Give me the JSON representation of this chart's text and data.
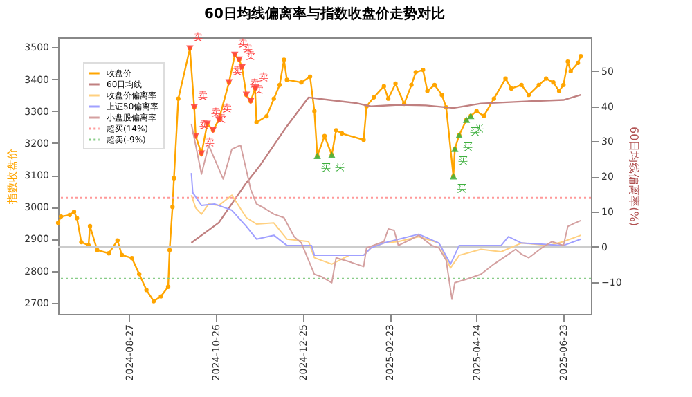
{
  "chart_data": {
    "type": "line",
    "title": "60日均线偏离率与指数收盘价走势对比",
    "ylabel": "指数收盘价",
    "y2label": "60日均线偏离率(%)",
    "xlim": [
      "2024-07-09",
      "2025-07-12"
    ],
    "xticks": [
      "2024-08-27",
      "2024-10-26",
      "2024-12-25",
      "2025-02-23",
      "2025-04-24",
      "2025-06-23"
    ],
    "ylim": [
      2665,
      3531
    ],
    "yticks": [
      2700,
      2800,
      2900,
      3000,
      3100,
      3200,
      3300,
      3400,
      3500
    ],
    "y2lim": [
      -19.1,
      59.6
    ],
    "y2ticks": [
      -10,
      0,
      10,
      20,
      30,
      40,
      50
    ],
    "legend": "top left",
    "series": [
      {
        "name": "收盘价",
        "color": "#ffa500",
        "marker": "circle",
        "x": [
          "2024-07-09",
          "2024-07-11",
          "2024-07-17",
          "2024-07-20",
          "2024-07-22",
          "2024-07-25",
          "2024-07-30",
          "2024-07-31",
          "2024-08-05",
          "2024-08-13",
          "2024-08-19",
          "2024-08-22",
          "2024-08-29",
          "2024-09-03",
          "2024-09-08",
          "2024-09-13",
          "2024-09-18",
          "2024-09-23",
          "2024-09-24",
          "2024-09-26",
          "2024-09-27",
          "2024-09-30",
          "2024-10-08",
          "2024-10-11",
          "2024-10-12",
          "2024-10-16",
          "2024-10-20",
          "2024-10-24",
          "2024-10-28",
          "2024-11-04",
          "2024-11-08",
          "2024-11-11",
          "2024-11-13",
          "2024-11-16",
          "2024-11-19",
          "2024-11-22",
          "2024-11-23",
          "2024-11-30",
          "2024-12-05",
          "2024-12-09",
          "2024-12-12",
          "2024-12-14",
          "2024-12-24",
          "2024-12-30",
          "2025-01-02",
          "2025-01-04",
          "2025-01-09",
          "2025-01-14",
          "2025-01-17",
          "2025-01-21",
          "2025-02-05",
          "2025-02-07",
          "2025-02-12",
          "2025-02-19",
          "2025-02-22",
          "2025-02-27",
          "2025-03-05",
          "2025-03-10",
          "2025-03-13",
          "2025-03-18",
          "2025-03-21",
          "2025-03-26",
          "2025-03-31",
          "2025-04-03",
          "2025-04-08",
          "2025-04-09",
          "2025-04-12",
          "2025-04-17",
          "2025-04-20",
          "2025-04-24",
          "2025-04-29",
          "2025-05-06",
          "2025-05-14",
          "2025-05-18",
          "2025-05-25",
          "2025-05-30",
          "2025-06-06",
          "2025-06-11",
          "2025-06-16",
          "2025-06-20",
          "2025-06-23",
          "2025-06-26",
          "2025-06-28",
          "2025-07-03",
          "2025-07-05"
        ],
        "values": [
          2950,
          2970,
          2975,
          2985,
          2965,
          2890,
          2880,
          2940,
          2865,
          2855,
          2895,
          2850,
          2840,
          2790,
          2740,
          2705,
          2720,
          2750,
          2865,
          3000,
          3090,
          3339,
          3496,
          3312,
          3222,
          3167,
          3260,
          3240,
          3273,
          3390,
          3476,
          3461,
          3437,
          3351,
          3331,
          3371,
          3265,
          3284,
          3339,
          3382,
          3461,
          3398,
          3390,
          3408,
          3300,
          3160,
          3222,
          3163,
          3240,
          3230,
          3210,
          3315,
          3343,
          3378,
          3339,
          3386,
          3323,
          3382,
          3422,
          3429,
          3363,
          3382,
          3351,
          3312,
          3096,
          3182,
          3225,
          3273,
          3285,
          3300,
          3285,
          3339,
          3402,
          3371,
          3382,
          3351,
          3382,
          3402,
          3390,
          3363,
          3382,
          3455,
          3425,
          3451,
          3472
        ]
      },
      {
        "name": "60日均线",
        "color": "#c08080",
        "x": [
          "2024-10-09",
          "2024-10-28",
          "2024-11-16",
          "2024-11-25",
          "2024-12-14",
          "2024-12-29",
          "2025-01-12",
          "2025-01-31",
          "2025-02-10",
          "2025-03-01",
          "2025-03-20",
          "2025-04-08",
          "2025-04-27",
          "2025-05-25",
          "2025-06-23",
          "2025-07-05"
        ],
        "values": [
          2888,
          2951,
          3076,
          3127,
          3253,
          3343,
          3335,
          3325,
          3315,
          3320,
          3318,
          3310,
          3324,
          3330,
          3335,
          3351
        ]
      },
      {
        "name": "收盘价偏离率",
        "axis": "y2",
        "color": "#ffd080",
        "x": [
          "2024-10-09",
          "2024-10-12",
          "2024-10-16",
          "2024-10-21",
          "2024-10-28",
          "2024-11-06",
          "2024-11-16",
          "2024-11-23",
          "2024-12-05",
          "2024-12-14",
          "2024-12-29",
          "2025-01-02",
          "2025-01-14",
          "2025-01-26",
          "2025-02-05",
          "2025-02-10",
          "2025-02-19",
          "2025-03-01",
          "2025-03-15",
          "2025-03-29",
          "2025-04-06",
          "2025-04-12",
          "2025-04-27",
          "2025-05-11",
          "2025-05-25",
          "2025-06-13",
          "2025-06-23",
          "2025-07-05"
        ],
        "values": [
          14.7,
          11.1,
          9.3,
          12.2,
          11.8,
          14.7,
          8.3,
          6.5,
          6.8,
          2.2,
          1.5,
          -3.1,
          -4.9,
          -2.4,
          -2.4,
          -0.3,
          1.1,
          1.5,
          2.9,
          1.1,
          -6.0,
          -2.4,
          -0.7,
          -1.4,
          1.1,
          0.4,
          1.5,
          3.3
        ]
      },
      {
        "name": "上证50偏离率",
        "axis": "y2",
        "color": "#a0a0ff",
        "x": [
          "2024-10-09",
          "2024-10-10",
          "2024-10-16",
          "2024-10-25",
          "2024-11-06",
          "2024-11-16",
          "2024-11-23",
          "2024-12-05",
          "2024-12-14",
          "2024-12-31",
          "2025-01-02",
          "2025-01-14",
          "2025-02-05",
          "2025-02-10",
          "2025-02-19",
          "2025-03-15",
          "2025-03-29",
          "2025-04-06",
          "2025-04-12",
          "2025-05-11",
          "2025-05-16",
          "2025-05-25",
          "2025-06-23",
          "2025-07-05"
        ],
        "values": [
          21.0,
          15.4,
          11.8,
          12.2,
          10.4,
          5.8,
          2.2,
          3.3,
          0.4,
          0.4,
          -2.4,
          -2.4,
          -2.4,
          -0.3,
          1.1,
          3.6,
          1.1,
          -4.9,
          0.4,
          0.4,
          2.9,
          1.1,
          0.4,
          2.2
        ]
      },
      {
        "name": "小盘股偏离率",
        "axis": "y2",
        "color": "#d4a0a0",
        "x": [
          "2024-10-09",
          "2024-10-12",
          "2024-10-16",
          "2024-10-21",
          "2024-10-31",
          "2024-11-06",
          "2024-11-12",
          "2024-11-16",
          "2024-11-19",
          "2024-11-23",
          "2024-11-28",
          "2024-12-05",
          "2024-12-12",
          "2024-12-19",
          "2024-12-24",
          "2025-01-02",
          "2025-01-07",
          "2025-01-14",
          "2025-01-17",
          "2025-01-26",
          "2025-02-05",
          "2025-02-07",
          "2025-02-19",
          "2025-02-22",
          "2025-02-26",
          "2025-03-01",
          "2025-03-10",
          "2025-03-15",
          "2025-03-24",
          "2025-03-29",
          "2025-04-03",
          "2025-04-07",
          "2025-04-09",
          "2025-04-17",
          "2025-04-27",
          "2025-05-06",
          "2025-05-16",
          "2025-05-21",
          "2025-05-25",
          "2025-05-30",
          "2025-06-08",
          "2025-06-15",
          "2025-06-23",
          "2025-06-26",
          "2025-07-01",
          "2025-07-05"
        ],
        "values": [
          35.0,
          28.9,
          20.7,
          28.9,
          19.3,
          27.8,
          28.9,
          21.8,
          16.4,
          12.2,
          11.1,
          9.3,
          8.3,
          2.9,
          1.1,
          -7.8,
          -8.5,
          -10.2,
          -3.1,
          -4.2,
          -5.6,
          -0.3,
          1.5,
          5.1,
          4.7,
          0.4,
          2.2,
          3.3,
          0.4,
          -0.3,
          -3.8,
          -14.9,
          -10.2,
          -9.2,
          -7.8,
          -4.9,
          -2.1,
          -0.7,
          -2.1,
          -3.1,
          -0.3,
          1.5,
          0.4,
          5.8,
          6.8,
          7.5
        ]
      },
      {
        "type": "scatter",
        "marker": "triangle-down",
        "color": "#ff4040",
        "x": [
          "2024-10-08",
          "2024-10-11",
          "2024-10-12",
          "2024-10-16",
          "2024-10-20",
          "2024-10-24",
          "2024-10-28",
          "2024-11-04",
          "2024-11-08",
          "2024-11-11",
          "2024-11-13",
          "2024-11-16",
          "2024-11-19",
          "2024-11-22"
        ],
        "values": [
          3496,
          3312,
          3222,
          3167,
          3260,
          3240,
          3273,
          3390,
          3476,
          3461,
          3437,
          3351,
          3331,
          3371
        ],
        "value_labels": [
          "卖",
          "卖",
          "卖",
          "卖",
          "卖",
          "卖",
          "卖",
          "卖",
          "卖",
          "卖",
          "卖",
          "卖",
          "卖",
          "卖"
        ]
      },
      {
        "type": "scatter",
        "marker": "triangle",
        "color": "#40b040",
        "x": [
          "2025-01-04",
          "2025-01-14",
          "2025-04-08",
          "2025-04-09",
          "2025-04-12",
          "2025-04-17",
          "2025-04-20"
        ],
        "values": [
          3160,
          3163,
          3096,
          3182,
          3225,
          3273,
          3285
        ],
        "value_labels": [
          "买",
          "买",
          "买",
          "买",
          "买",
          "买",
          "买"
        ]
      }
    ],
    "ref_lines": [
      {
        "axis": "y2",
        "value": 14,
        "label": "超买(14%)",
        "color": "#ff9999",
        "line_style": "dotted"
      },
      {
        "axis": "y2",
        "value": -9,
        "label": "超卖(-9%)",
        "color": "#88cc88",
        "line_style": "dotted"
      },
      {
        "axis": "y2",
        "value": 0,
        "color": "#cccccc",
        "line_style": "solid"
      }
    ]
  }
}
